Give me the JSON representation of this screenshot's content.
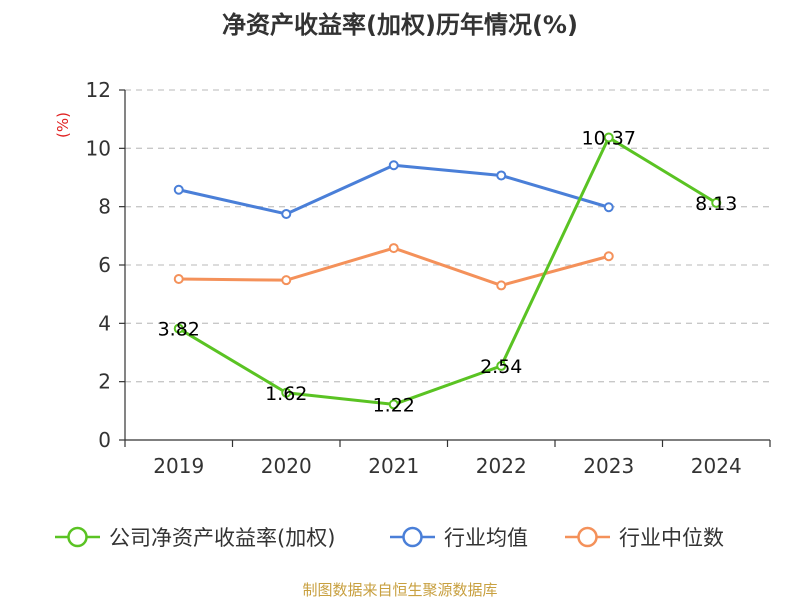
{
  "chart_data": {
    "type": "line",
    "title": "净资产收益率(加权)历年情况(%)",
    "ylabel": "(%)",
    "categories": [
      "2019",
      "2020",
      "2021",
      "2022",
      "2023",
      "2024"
    ],
    "ylim": [
      0,
      12
    ],
    "yticks": [
      0,
      2,
      4,
      6,
      8,
      10,
      12
    ],
    "y_tick_labels": [
      "0",
      "2",
      "4",
      "6",
      "8",
      "10",
      "12"
    ],
    "grid": "horizontal-dashed",
    "legend_position": "bottom",
    "series": [
      {
        "name": "公司净资产收益率(加权)",
        "color": "#5ac323",
        "values": [
          3.82,
          1.62,
          1.22,
          2.54,
          10.37,
          8.13
        ],
        "labels": [
          "3.82",
          "1.62",
          "1.22",
          "2.54",
          "10.37",
          "8.13"
        ]
      },
      {
        "name": "行业均值",
        "color": "#4a7fd8",
        "values": [
          8.58,
          7.75,
          9.42,
          9.07,
          7.98,
          null
        ]
      },
      {
        "name": "行业中位数",
        "color": "#f4915a",
        "values": [
          5.52,
          5.48,
          6.58,
          5.3,
          6.3,
          null
        ]
      }
    ]
  },
  "source_text": "制图数据来自恒生聚源数据库",
  "colors": {
    "axis": "#333333",
    "grid": "#c8c8c8",
    "ylabel": "#e02020",
    "source": "#c8a040"
  }
}
